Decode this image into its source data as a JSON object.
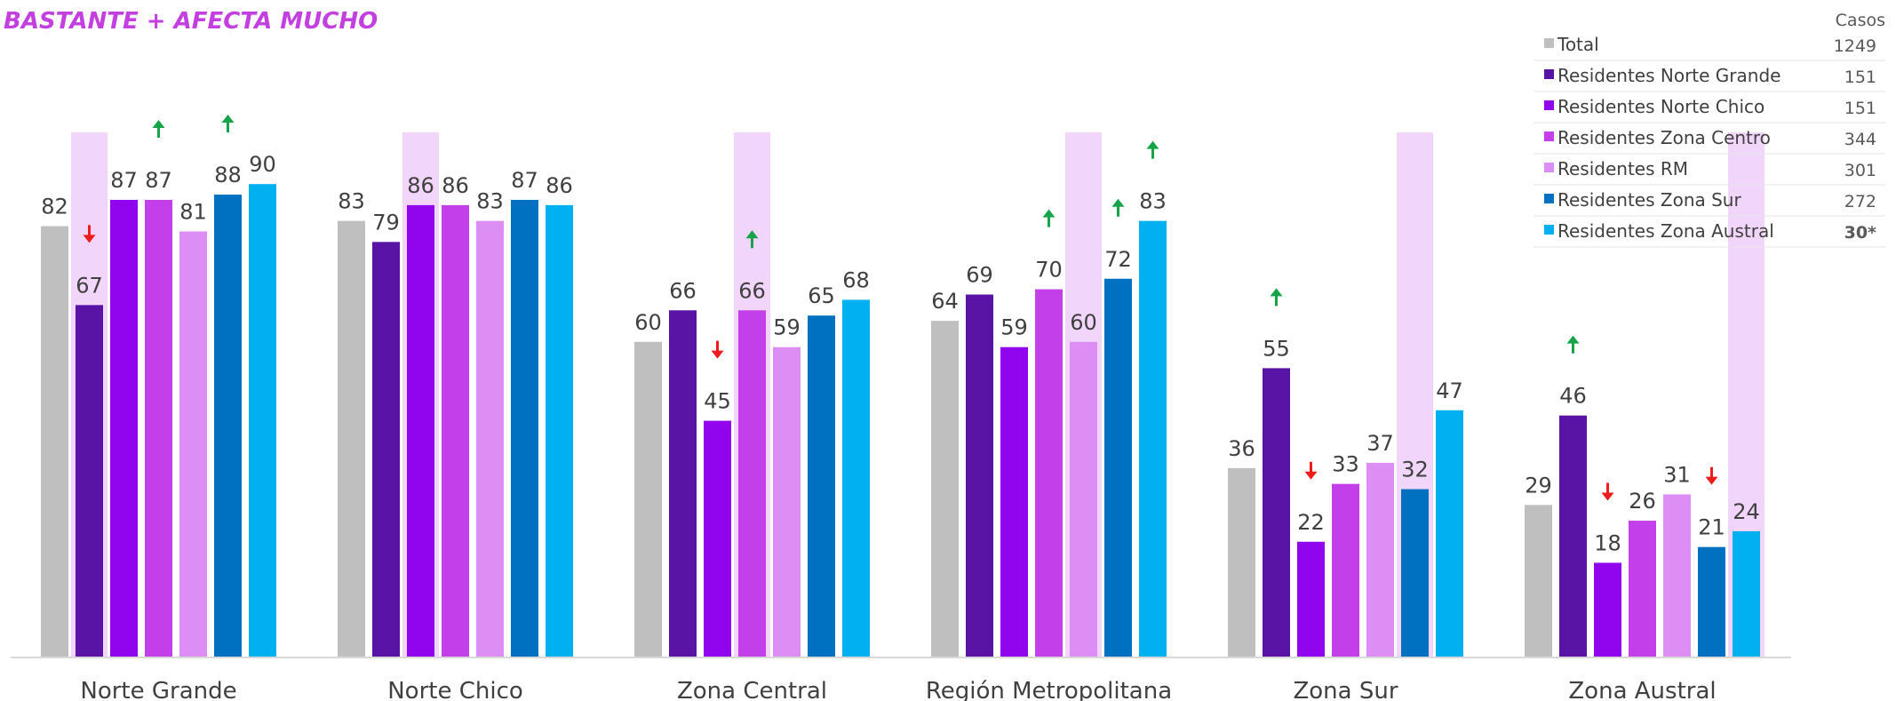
{
  "colors": {
    "title": "#c33fe0",
    "highlight": "#f2d5fa",
    "axis": "#d9d9d9",
    "up": "#16a34a",
    "down": "#ee1c1c",
    "warn_count": "#f0836c"
  },
  "chart_data": {
    "type": "bar",
    "title": "BASTANTE + AFECTA MUCHO",
    "xlabel": "",
    "ylabel": "",
    "ylim": [
      0,
      100
    ],
    "grid": false,
    "legend_placement": "top-right",
    "legend_header": "Casos",
    "categories": [
      "Norte Grande",
      "Norte Chico",
      "Zona Central",
      "Región Metropolitana",
      "Zona Sur",
      "Zona Austral"
    ],
    "highlight_series_per_category": [
      1,
      2,
      3,
      4,
      5,
      6
    ],
    "series": [
      {
        "name": "Total",
        "color": "#bfbfbf",
        "cases": "1249",
        "values": [
          82,
          83,
          60,
          64,
          36,
          29
        ],
        "markers": [
          "",
          "",
          "",
          "",
          "",
          ""
        ]
      },
      {
        "name": "Residentes Norte Grande",
        "color": "#5a14a5",
        "cases": "151",
        "values": [
          67,
          79,
          66,
          69,
          55,
          46
        ],
        "markers": [
          "down",
          "",
          "",
          "",
          "up",
          "up"
        ]
      },
      {
        "name": "Residentes Norte Chico",
        "color": "#9104ee",
        "cases": "151",
        "values": [
          87,
          86,
          45,
          59,
          22,
          18
        ],
        "markers": [
          "",
          "",
          "down",
          "",
          "down",
          "down"
        ]
      },
      {
        "name": "Residentes Zona Centro",
        "color": "#c33fe9",
        "cases": "344",
        "values": [
          87,
          86,
          66,
          70,
          33,
          26
        ],
        "markers": [
          "up",
          "",
          "up",
          "up",
          "",
          ""
        ]
      },
      {
        "name": "Residentes RM",
        "color": "#dd8ef5",
        "cases": "301",
        "values": [
          81,
          83,
          59,
          60,
          37,
          31
        ],
        "markers": [
          "",
          "",
          "",
          "",
          "",
          ""
        ]
      },
      {
        "name": "Residentes Zona Sur",
        "color": "#0070c0",
        "cases": "272",
        "values": [
          88,
          87,
          65,
          72,
          32,
          21
        ],
        "markers": [
          "up",
          "",
          "",
          "up",
          "",
          "down"
        ]
      },
      {
        "name": "Residentes Zona Austral",
        "color": "#00b0f0",
        "cases": "30*",
        "values": [
          90,
          86,
          68,
          83,
          47,
          24
        ],
        "markers": [
          "",
          "",
          "",
          "up",
          "",
          ""
        ]
      }
    ]
  }
}
